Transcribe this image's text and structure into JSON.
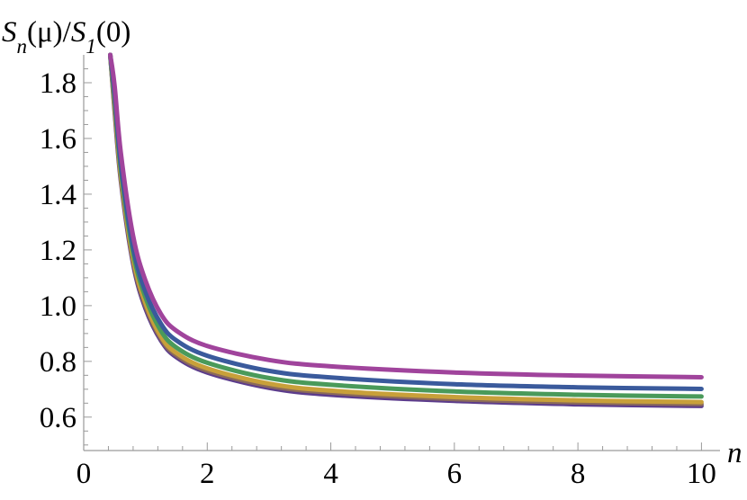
{
  "chart_data": {
    "type": "line",
    "ylabel": "S_n(μ)/S_1(0)",
    "xlabel": "n",
    "xlim": [
      0,
      10.3
    ],
    "ylim": [
      0.48,
      1.9
    ],
    "grid": false,
    "x_ticks": [
      0,
      2,
      4,
      6,
      8,
      10
    ],
    "y_ticks": [
      0.6,
      0.8,
      1.0,
      1.2,
      1.4,
      1.6,
      1.8
    ],
    "x_tick_labels": [
      "0",
      "2",
      "4",
      "6",
      "8",
      "10"
    ],
    "y_tick_labels": [
      "0.6",
      "0.8",
      "1.0",
      "1.2",
      "1.4",
      "1.6",
      "1.8"
    ],
    "series": [
      {
        "color": "#5c3c8c",
        "x": [
          0.43,
          0.5,
          0.6,
          0.8,
          1.0,
          1.25,
          1.5,
          2,
          3,
          4,
          6,
          8,
          10
        ],
        "values": [
          1.9,
          1.7,
          1.45,
          1.15,
          0.99,
          0.875,
          0.815,
          0.76,
          0.705,
          0.68,
          0.658,
          0.646,
          0.64
        ]
      },
      {
        "color": "#8a6a5a",
        "x": [
          0.43,
          0.5,
          0.6,
          0.8,
          1.0,
          1.25,
          1.5,
          2,
          3,
          4,
          6,
          8,
          10
        ],
        "values": [
          1.9,
          1.71,
          1.46,
          1.16,
          1.0,
          0.882,
          0.822,
          0.767,
          0.712,
          0.688,
          0.665,
          0.653,
          0.647
        ]
      },
      {
        "color": "#c8a03a",
        "x": [
          0.43,
          0.5,
          0.6,
          0.8,
          1.0,
          1.25,
          1.5,
          2,
          3,
          4,
          6,
          8,
          10
        ],
        "values": [
          1.9,
          1.72,
          1.47,
          1.17,
          1.01,
          0.89,
          0.83,
          0.775,
          0.72,
          0.695,
          0.672,
          0.66,
          0.654
        ]
      },
      {
        "color": "#4a9a5a",
        "x": [
          0.43,
          0.5,
          0.6,
          0.8,
          1.0,
          1.25,
          1.5,
          2,
          3,
          4,
          6,
          8,
          10
        ],
        "values": [
          1.9,
          1.74,
          1.49,
          1.19,
          1.03,
          0.91,
          0.85,
          0.795,
          0.74,
          0.716,
          0.692,
          0.68,
          0.674
        ]
      },
      {
        "color": "#3a5a9c",
        "x": [
          0.43,
          0.5,
          0.6,
          0.8,
          1.0,
          1.25,
          1.5,
          2,
          3,
          4,
          6,
          8,
          10
        ],
        "values": [
          1.9,
          1.76,
          1.51,
          1.21,
          1.05,
          0.935,
          0.875,
          0.82,
          0.766,
          0.742,
          0.718,
          0.707,
          0.701
        ]
      },
      {
        "color": "#a0449c",
        "x": [
          0.43,
          0.5,
          0.6,
          0.8,
          1.0,
          1.25,
          1.5,
          2,
          3,
          4,
          6,
          8,
          10
        ],
        "values": [
          1.9,
          1.79,
          1.55,
          1.25,
          1.09,
          0.97,
          0.91,
          0.855,
          0.805,
          0.782,
          0.76,
          0.749,
          0.743
        ]
      }
    ]
  }
}
